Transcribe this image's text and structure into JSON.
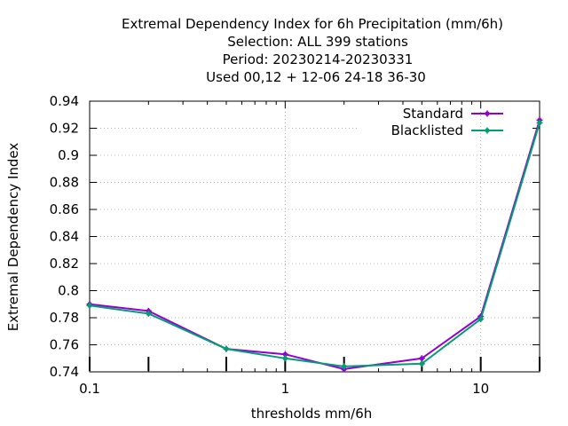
{
  "chart_data": {
    "type": "line",
    "title_lines": [
      "Extremal Dependency Index  for 6h Precipitation (mm/6h)",
      "Selection: ALL    399 stations",
      "Period: 20230214-20230331",
      "Used  00,12  + 12-06 24-18 36-30"
    ],
    "xlabel": "thresholds mm/6h",
    "ylabel": "Extremal Dependency Index",
    "x_scale": "log",
    "xlim": [
      0.1,
      20
    ],
    "ylim": [
      0.74,
      0.94
    ],
    "x_ticks": [
      0.1,
      1,
      10
    ],
    "x_tick_labels": [
      "0.1",
      "1",
      "10"
    ],
    "y_ticks": [
      0.74,
      0.76,
      0.78,
      0.8,
      0.82,
      0.84,
      0.86,
      0.88,
      0.9,
      0.92,
      0.94
    ],
    "y_tick_labels": [
      "0.74",
      "0.76",
      "0.78",
      "0.8",
      "0.82",
      "0.84",
      "0.86",
      "0.88",
      "0.9",
      "0.92",
      "0.94"
    ],
    "threshold_marks": [
      0.1,
      0.2,
      0.5,
      1,
      2,
      5,
      10,
      20
    ],
    "grid": true,
    "legend_position": "top-right",
    "series": [
      {
        "name": "Standard",
        "color": "#9400d3",
        "x": [
          0.1,
          0.2,
          0.5,
          1,
          2,
          5,
          10,
          20
        ],
        "y": [
          0.79,
          0.785,
          0.757,
          0.753,
          0.742,
          0.75,
          0.781,
          0.926
        ]
      },
      {
        "name": "Blacklisted",
        "color": "#009e73",
        "x": [
          0.1,
          0.2,
          0.5,
          1,
          2,
          5,
          10,
          20
        ],
        "y": [
          0.789,
          0.783,
          0.757,
          0.75,
          0.744,
          0.746,
          0.779,
          0.924
        ]
      }
    ]
  }
}
